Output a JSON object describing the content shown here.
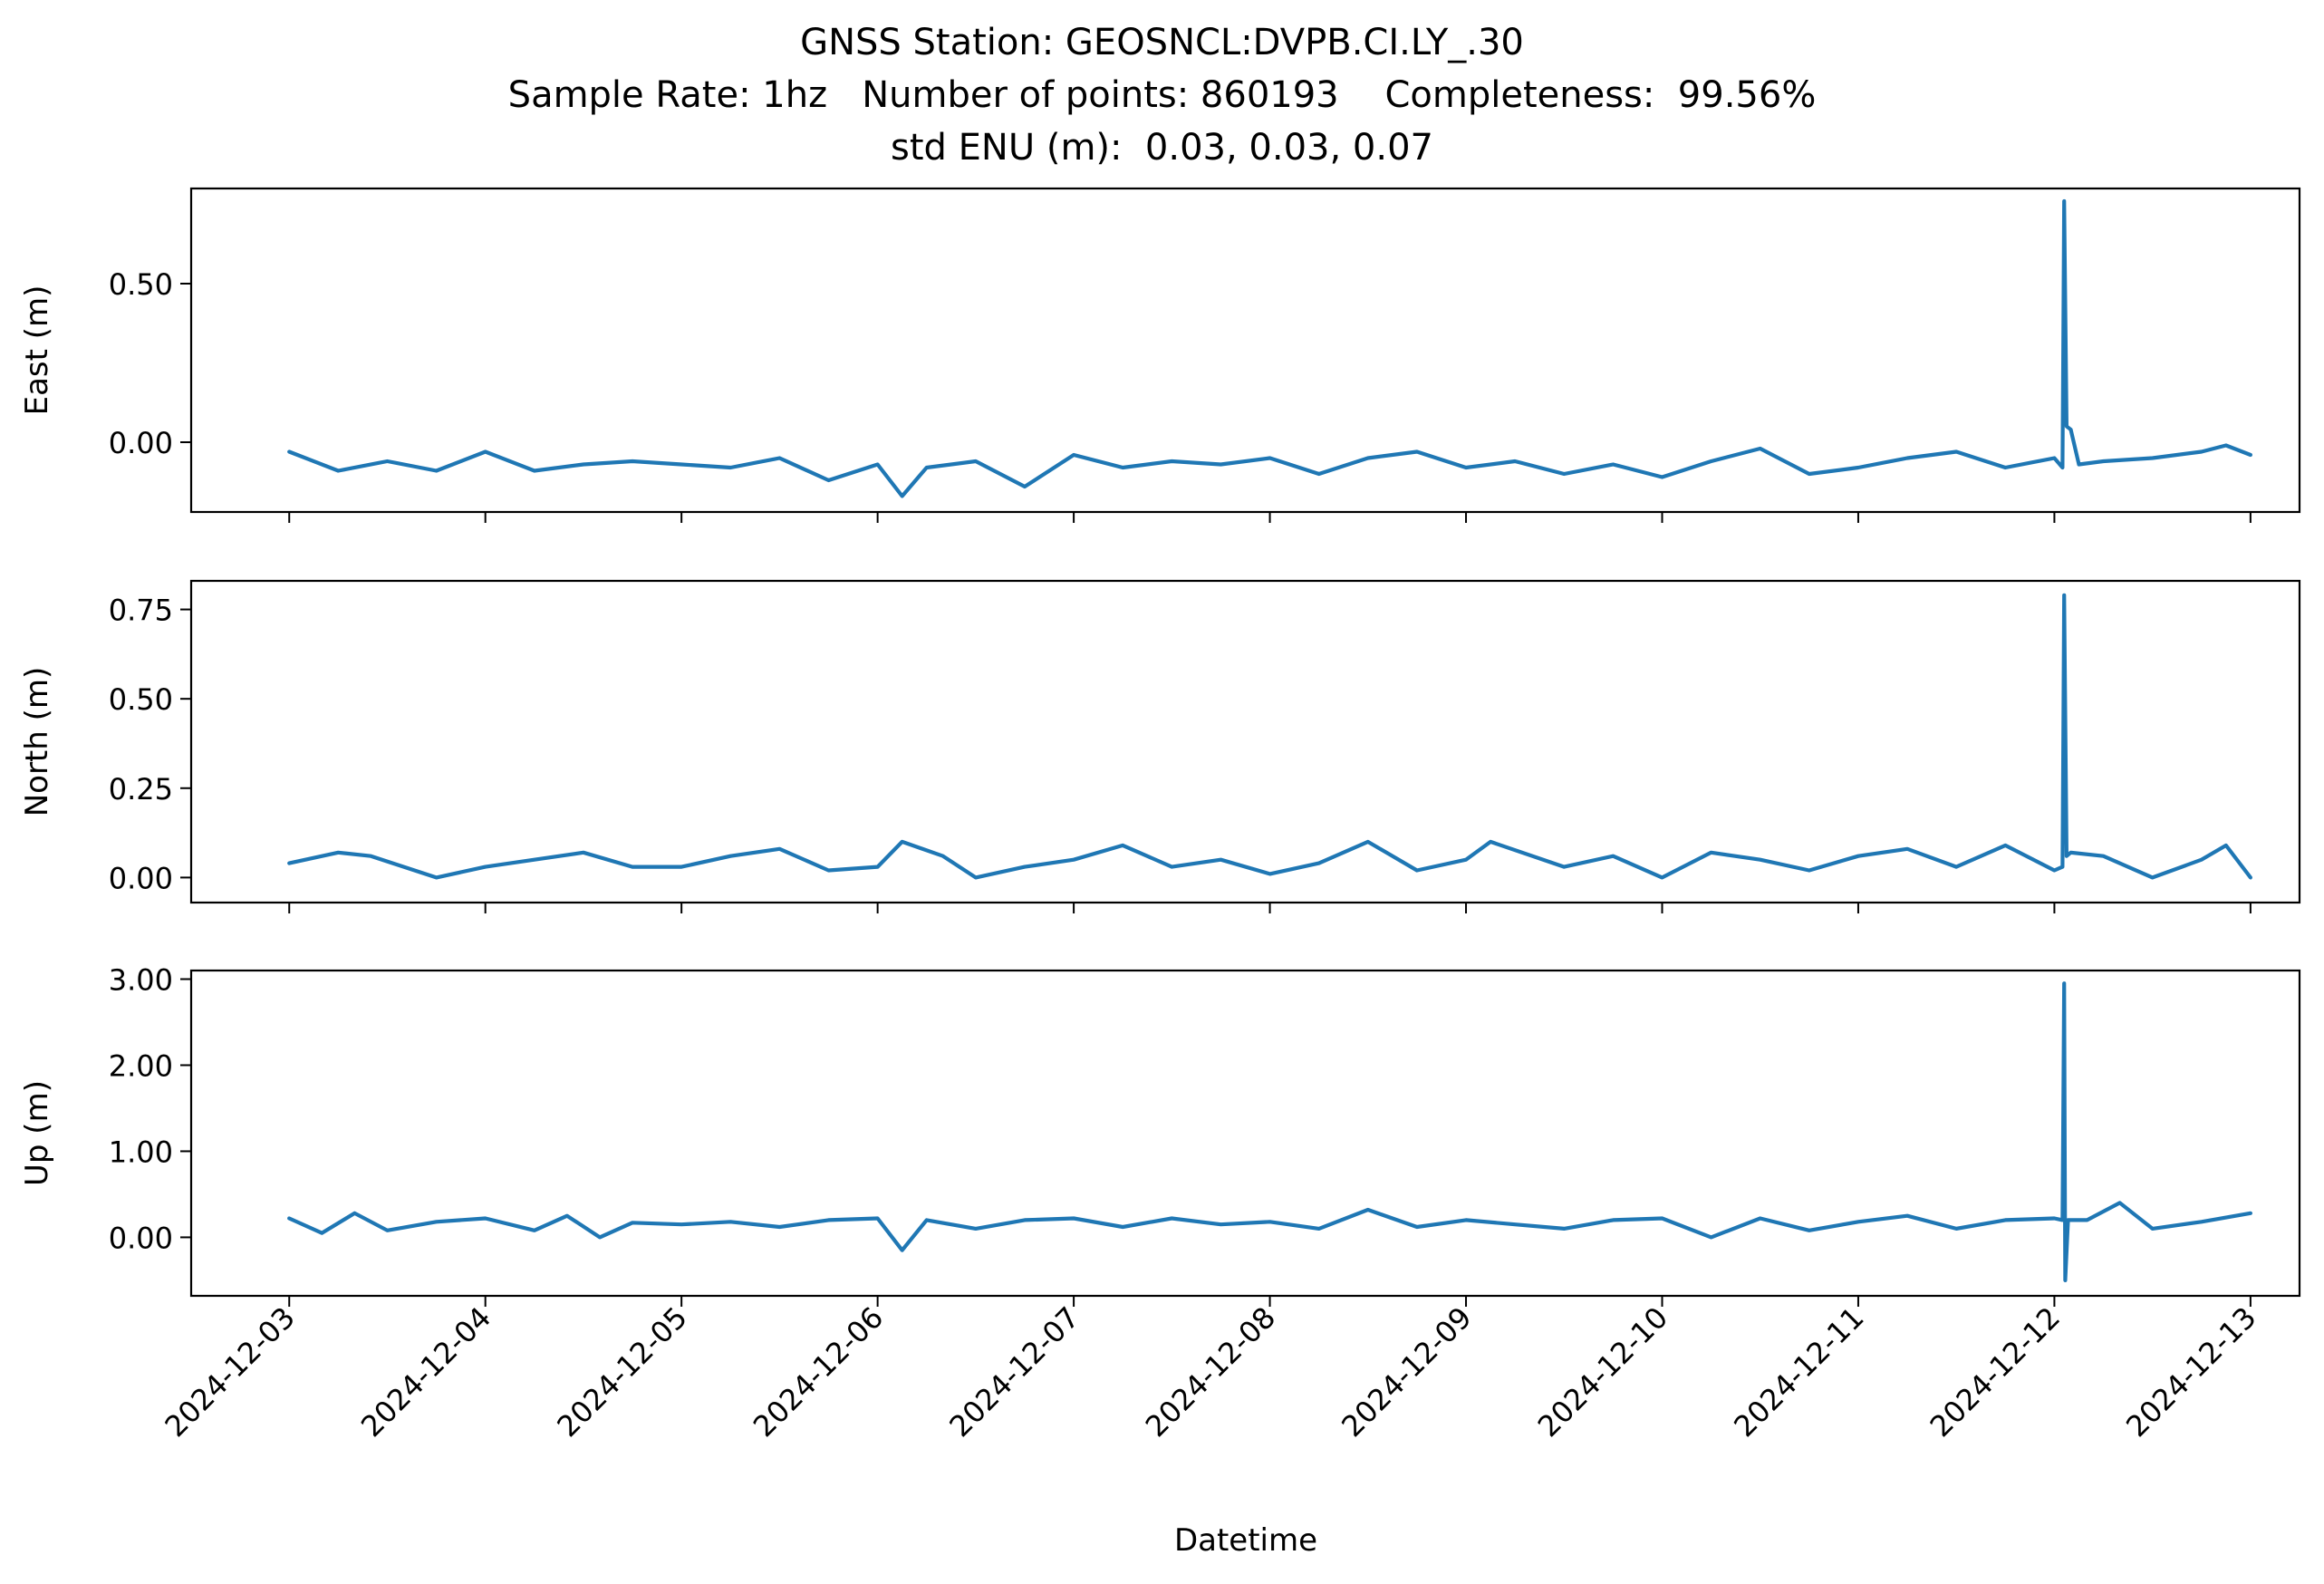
{
  "figure": {
    "title_lines": [
      "GNSS Station: GEOSNCL:DVPB.CI.LY_.30",
      "Sample Rate: 1hz   Number of points: 860193    Completeness:  99.56%",
      "std ENU (m):  0.03, 0.03, 0.07"
    ],
    "xlabel": "Datetime",
    "line_color": "#1f77b4"
  },
  "chart_data": [
    {
      "type": "line",
      "ylabel": "East (m)",
      "xlim": [
        "2024-12-02T12:00",
        "2024-12-13T06:00"
      ],
      "ylim": [
        -0.22,
        0.8
      ],
      "yticks": [
        0.0,
        0.5
      ],
      "ytick_labels": [
        "0.00",
        "0.50"
      ],
      "xticks": [
        "2024-12-03",
        "2024-12-04",
        "2024-12-05",
        "2024-12-06",
        "2024-12-07",
        "2024-12-08",
        "2024-12-09",
        "2024-12-10",
        "2024-12-11",
        "2024-12-12",
        "2024-12-13"
      ],
      "xtick_labels_shown": false,
      "grid": false,
      "series": [
        {
          "x": [
            "2024-12-03T00:00",
            "2024-12-03T06:00",
            "2024-12-03T12:00",
            "2024-12-03T18:00",
            "2024-12-04T00:00",
            "2024-12-04T06:00",
            "2024-12-04T12:00",
            "2024-12-04T18:00",
            "2024-12-05T00:00",
            "2024-12-05T06:00",
            "2024-12-05T12:00",
            "2024-12-05T18:00",
            "2024-12-06T00:00",
            "2024-12-06T03:00",
            "2024-12-06T06:00",
            "2024-12-06T12:00",
            "2024-12-06T18:00",
            "2024-12-07T00:00",
            "2024-12-07T06:00",
            "2024-12-07T12:00",
            "2024-12-07T18:00",
            "2024-12-08T00:00",
            "2024-12-08T06:00",
            "2024-12-08T12:00",
            "2024-12-08T18:00",
            "2024-12-09T00:00",
            "2024-12-09T06:00",
            "2024-12-09T12:00",
            "2024-12-09T18:00",
            "2024-12-10T00:00",
            "2024-12-10T06:00",
            "2024-12-10T12:00",
            "2024-12-10T18:00",
            "2024-12-11T00:00",
            "2024-12-11T06:00",
            "2024-12-11T12:00",
            "2024-12-11T18:00",
            "2024-12-12T00:00",
            "2024-12-12T01:00",
            "2024-12-12T01:12",
            "2024-12-12T01:30",
            "2024-12-12T02:00",
            "2024-12-12T03:00",
            "2024-12-12T06:00",
            "2024-12-12T12:00",
            "2024-12-12T18:00",
            "2024-12-12T21:00",
            "2024-12-13T00:00"
          ],
          "y": [
            -0.03,
            -0.09,
            -0.06,
            -0.09,
            -0.03,
            -0.09,
            -0.07,
            -0.06,
            -0.07,
            -0.08,
            -0.05,
            -0.12,
            -0.07,
            -0.17,
            -0.08,
            -0.06,
            -0.14,
            -0.04,
            -0.08,
            -0.06,
            -0.07,
            -0.05,
            -0.1,
            -0.05,
            -0.03,
            -0.08,
            -0.06,
            -0.1,
            -0.07,
            -0.11,
            -0.06,
            -0.02,
            -0.1,
            -0.08,
            -0.05,
            -0.03,
            -0.08,
            -0.05,
            -0.08,
            0.76,
            0.05,
            0.04,
            -0.07,
            -0.06,
            -0.05,
            -0.03,
            -0.01,
            -0.04
          ]
        }
      ]
    },
    {
      "type": "line",
      "ylabel": "North (m)",
      "xlim": [
        "2024-12-02T12:00",
        "2024-12-13T06:00"
      ],
      "ylim": [
        -0.07,
        0.83
      ],
      "yticks": [
        0.0,
        0.25,
        0.5,
        0.75
      ],
      "ytick_labels": [
        "0.00",
        "0.25",
        "0.50",
        "0.75"
      ],
      "xticks": [
        "2024-12-03",
        "2024-12-04",
        "2024-12-05",
        "2024-12-06",
        "2024-12-07",
        "2024-12-08",
        "2024-12-09",
        "2024-12-10",
        "2024-12-11",
        "2024-12-12",
        "2024-12-13"
      ],
      "xtick_labels_shown": false,
      "grid": false,
      "series": [
        {
          "x": [
            "2024-12-03T00:00",
            "2024-12-03T06:00",
            "2024-12-03T10:00",
            "2024-12-03T18:00",
            "2024-12-04T00:00",
            "2024-12-04T06:00",
            "2024-12-04T12:00",
            "2024-12-04T18:00",
            "2024-12-05T00:00",
            "2024-12-05T06:00",
            "2024-12-05T12:00",
            "2024-12-05T18:00",
            "2024-12-06T00:00",
            "2024-12-06T03:00",
            "2024-12-06T08:00",
            "2024-12-06T12:00",
            "2024-12-06T18:00",
            "2024-12-07T00:00",
            "2024-12-07T06:00",
            "2024-12-07T12:00",
            "2024-12-07T18:00",
            "2024-12-08T00:00",
            "2024-12-08T06:00",
            "2024-12-08T12:00",
            "2024-12-08T18:00",
            "2024-12-09T00:00",
            "2024-12-09T03:00",
            "2024-12-09T12:00",
            "2024-12-09T18:00",
            "2024-12-10T00:00",
            "2024-12-10T06:00",
            "2024-12-10T12:00",
            "2024-12-10T18:00",
            "2024-12-11T00:00",
            "2024-12-11T06:00",
            "2024-12-11T12:00",
            "2024-12-11T18:00",
            "2024-12-12T00:00",
            "2024-12-12T01:00",
            "2024-12-12T01:12",
            "2024-12-12T01:30",
            "2024-12-12T02:00",
            "2024-12-12T06:00",
            "2024-12-12T12:00",
            "2024-12-12T18:00",
            "2024-12-12T21:00",
            "2024-12-13T00:00"
          ],
          "y": [
            0.04,
            0.07,
            0.06,
            0.0,
            0.03,
            0.05,
            0.07,
            0.03,
            0.03,
            0.06,
            0.08,
            0.02,
            0.03,
            0.1,
            0.06,
            0.0,
            0.03,
            0.05,
            0.09,
            0.03,
            0.05,
            0.01,
            0.04,
            0.1,
            0.02,
            0.05,
            0.1,
            0.03,
            0.06,
            0.0,
            0.07,
            0.05,
            0.02,
            0.06,
            0.08,
            0.03,
            0.09,
            0.02,
            0.03,
            0.79,
            0.06,
            0.07,
            0.06,
            0.0,
            0.05,
            0.09,
            0.0
          ]
        }
      ]
    },
    {
      "type": "line",
      "ylabel": "Up (m)",
      "xlim": [
        "2024-12-02T12:00",
        "2024-12-13T06:00"
      ],
      "ylim": [
        -0.68,
        3.1
      ],
      "yticks": [
        0.0,
        1.0,
        2.0,
        3.0
      ],
      "ytick_labels": [
        "0.00",
        "1.00",
        "2.00",
        "3.00"
      ],
      "xticks": [
        "2024-12-03",
        "2024-12-04",
        "2024-12-05",
        "2024-12-06",
        "2024-12-07",
        "2024-12-08",
        "2024-12-09",
        "2024-12-10",
        "2024-12-11",
        "2024-12-12",
        "2024-12-13"
      ],
      "xtick_labels": [
        "2024-12-03",
        "2024-12-04",
        "2024-12-05",
        "2024-12-06",
        "2024-12-07",
        "2024-12-08",
        "2024-12-09",
        "2024-12-10",
        "2024-12-11",
        "2024-12-12",
        "2024-12-13"
      ],
      "xtick_labels_shown": true,
      "xlabel": "Datetime",
      "grid": false,
      "series": [
        {
          "x": [
            "2024-12-03T00:00",
            "2024-12-03T04:00",
            "2024-12-03T08:00",
            "2024-12-03T12:00",
            "2024-12-03T18:00",
            "2024-12-04T00:00",
            "2024-12-04T06:00",
            "2024-12-04T10:00",
            "2024-12-04T14:00",
            "2024-12-04T18:00",
            "2024-12-05T00:00",
            "2024-12-05T06:00",
            "2024-12-05T12:00",
            "2024-12-05T18:00",
            "2024-12-06T00:00",
            "2024-12-06T03:00",
            "2024-12-06T06:00",
            "2024-12-06T12:00",
            "2024-12-06T18:00",
            "2024-12-07T00:00",
            "2024-12-07T06:00",
            "2024-12-07T12:00",
            "2024-12-07T18:00",
            "2024-12-08T00:00",
            "2024-12-08T06:00",
            "2024-12-08T12:00",
            "2024-12-08T18:00",
            "2024-12-09T00:00",
            "2024-12-09T06:00",
            "2024-12-09T12:00",
            "2024-12-09T18:00",
            "2024-12-10T00:00",
            "2024-12-10T06:00",
            "2024-12-10T12:00",
            "2024-12-10T18:00",
            "2024-12-11T00:00",
            "2024-12-11T06:00",
            "2024-12-11T12:00",
            "2024-12-11T18:00",
            "2024-12-12T00:00",
            "2024-12-12T01:00",
            "2024-12-12T01:12",
            "2024-12-12T01:20",
            "2024-12-12T01:40",
            "2024-12-12T04:00",
            "2024-12-12T08:00",
            "2024-12-12T12:00",
            "2024-12-12T18:00",
            "2024-12-13T00:00"
          ],
          "y": [
            0.22,
            0.05,
            0.28,
            0.08,
            0.18,
            0.22,
            0.08,
            0.25,
            0.0,
            0.17,
            0.15,
            0.18,
            0.12,
            0.2,
            0.22,
            -0.15,
            0.2,
            0.1,
            0.2,
            0.22,
            0.12,
            0.22,
            0.15,
            0.18,
            0.1,
            0.32,
            0.12,
            0.2,
            0.15,
            0.1,
            0.2,
            0.22,
            0.0,
            0.22,
            0.08,
            0.18,
            0.25,
            0.1,
            0.2,
            0.22,
            0.2,
            2.95,
            -0.5,
            0.2,
            0.2,
            0.4,
            0.1,
            0.18,
            0.28
          ]
        }
      ]
    }
  ]
}
